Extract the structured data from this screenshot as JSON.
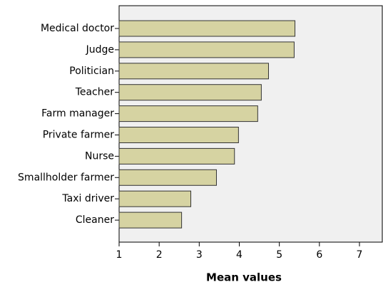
{
  "chart_data": {
    "type": "barh",
    "categories": [
      "Medical doctor",
      "Judge",
      "Politician",
      "Teacher",
      "Farm manager",
      "Private farmer",
      "Nurse",
      "Smallholder farmer",
      "Taxi driver",
      "Cleaner"
    ],
    "values": [
      5.39,
      5.37,
      4.73,
      4.55,
      4.46,
      3.98,
      3.88,
      3.43,
      2.79,
      2.56
    ],
    "color": "#d6d3a2",
    "xlabel": "Mean values",
    "xlim": [
      1,
      7.57
    ],
    "xticks": [
      1,
      2,
      3,
      4,
      5,
      6,
      7
    ]
  }
}
